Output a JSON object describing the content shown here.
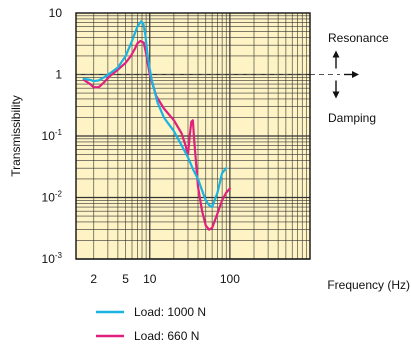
{
  "chart_data": {
    "type": "line",
    "x_scale": "log",
    "y_scale": "log",
    "xlabel": "Frequency (Hz)",
    "ylabel": "Transmissibility",
    "xlim": [
      1.2,
      1000
    ],
    "ylim": [
      0.001,
      10
    ],
    "x_ticks": [
      {
        "value": 2,
        "label": "2"
      },
      {
        "value": 5,
        "label": "5"
      },
      {
        "value": 10,
        "label": "10"
      },
      {
        "value": 100,
        "label": "100"
      }
    ],
    "y_ticks": [
      {
        "value": 10,
        "base": "10",
        "exp": ""
      },
      {
        "value": 1,
        "base": "1",
        "exp": ""
      },
      {
        "value": 0.1,
        "base": "10",
        "exp": "-1"
      },
      {
        "value": 0.01,
        "base": "10",
        "exp": "-2"
      },
      {
        "value": 0.001,
        "base": "10",
        "exp": "-3"
      }
    ],
    "annotations": {
      "upper": "Resonance",
      "lower": "Damping",
      "reference_value": 1
    },
    "legend_position": "bottom-left",
    "colors": {
      "background": "#fdf3c4",
      "grid": "#333333",
      "reference_line": "#555555"
    },
    "series": [
      {
        "name": "Load: 1000 N",
        "color": "#1ab3e2",
        "x": [
          1.5,
          1.8,
          2.0,
          2.3,
          2.7,
          3.2,
          4.0,
          5.0,
          6.0,
          7.0,
          7.8,
          8.3,
          8.8,
          9.4,
          10.5,
          12.5,
          15,
          20,
          25,
          30,
          35,
          40,
          45,
          50,
          55,
          60,
          70,
          80,
          90
        ],
        "y": [
          0.85,
          0.82,
          0.78,
          0.8,
          0.9,
          1.05,
          1.3,
          2.0,
          3.5,
          6.0,
          7.3,
          6.8,
          4.5,
          2.0,
          0.85,
          0.35,
          0.2,
          0.12,
          0.07,
          0.045,
          0.028,
          0.02,
          0.013,
          0.009,
          0.0075,
          0.007,
          0.012,
          0.025,
          0.03
        ]
      },
      {
        "name": "Load: 660 N",
        "color": "#e0207d",
        "x": [
          1.5,
          1.8,
          2.0,
          2.3,
          2.7,
          3.2,
          4.0,
          5.0,
          5.8,
          6.5,
          7.0,
          7.6,
          8.4,
          9.0,
          10.0,
          12.0,
          15,
          20,
          25,
          28,
          30,
          31.5,
          33,
          34.5,
          36,
          40,
          45,
          50,
          55,
          60,
          70,
          80,
          90,
          100
        ],
        "y": [
          0.82,
          0.7,
          0.62,
          0.62,
          0.75,
          0.95,
          1.2,
          1.55,
          2.0,
          2.6,
          3.2,
          3.5,
          3.3,
          2.2,
          1.0,
          0.45,
          0.28,
          0.18,
          0.11,
          0.07,
          0.05,
          0.1,
          0.17,
          0.18,
          0.08,
          0.015,
          0.006,
          0.0035,
          0.003,
          0.0032,
          0.0055,
          0.009,
          0.012,
          0.014
        ]
      }
    ]
  }
}
